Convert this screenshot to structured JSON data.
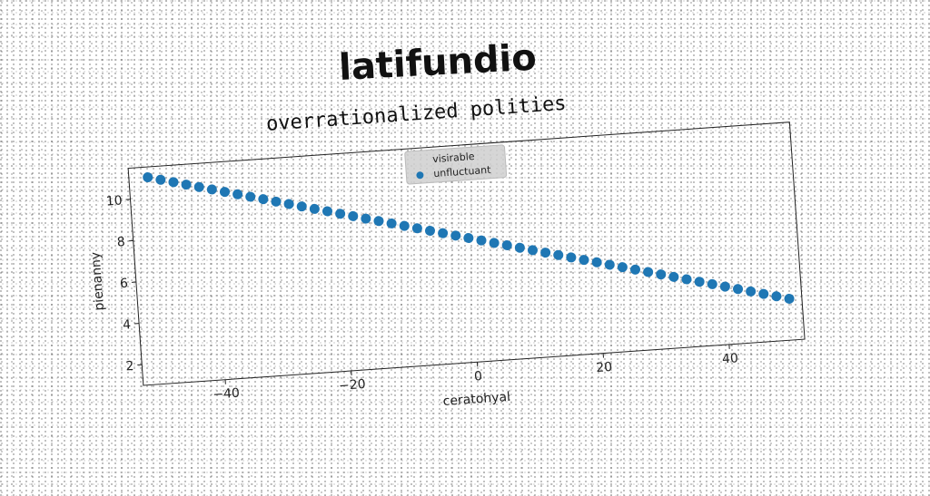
{
  "title": "latifundio",
  "chart_data": {
    "type": "scatter",
    "title": "overrationalized polities",
    "xlabel": "ceratohyal",
    "ylabel": "pienanny",
    "xlim": [
      -53,
      52
    ],
    "ylim": [
      1.0,
      11.5
    ],
    "xticks": [
      -40,
      -20,
      0,
      20,
      40
    ],
    "yticks": [
      2,
      4,
      6,
      8,
      10
    ],
    "legend": {
      "title": "visirable",
      "placement": "top-center",
      "entries": [
        "unfluctuant"
      ]
    },
    "series": [
      {
        "name": "unfluctuant",
        "color": "#1f77b4",
        "x": [
          -50,
          -48,
          -46,
          -44,
          -42,
          -40,
          -38,
          -36,
          -34,
          -32,
          -30,
          -28,
          -26,
          -24,
          -22,
          -20,
          -18,
          -16,
          -14,
          -12,
          -10,
          -8,
          -6,
          -4,
          -2,
          0,
          2,
          4,
          6,
          8,
          10,
          12,
          14,
          16,
          18,
          20,
          22,
          24,
          26,
          28,
          30,
          32,
          34,
          36,
          38,
          40,
          42,
          44,
          46,
          48,
          50
        ],
        "y": [
          11.0,
          10.84,
          10.68,
          10.52,
          10.36,
          10.2,
          10.04,
          9.88,
          9.72,
          9.56,
          9.4,
          9.24,
          9.08,
          8.92,
          8.76,
          8.6,
          8.44,
          8.28,
          8.12,
          7.96,
          7.8,
          7.64,
          7.48,
          7.32,
          7.16,
          7.0,
          6.84,
          6.68,
          6.52,
          6.36,
          6.2,
          6.04,
          5.88,
          5.72,
          5.56,
          5.4,
          5.24,
          5.08,
          4.92,
          4.76,
          4.6,
          4.44,
          4.28,
          4.12,
          3.96,
          3.8,
          3.64,
          3.48,
          3.32,
          3.16,
          3.0
        ]
      }
    ]
  }
}
